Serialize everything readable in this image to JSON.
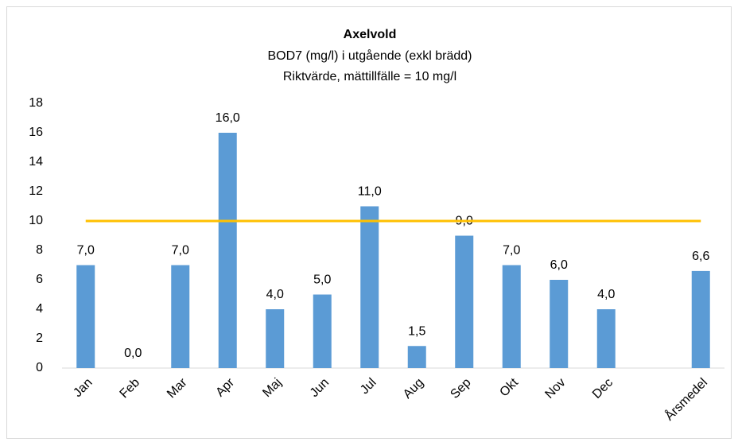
{
  "chart_data": {
    "type": "bar",
    "title": "Axelvold",
    "subtitle": [
      "BOD7 (mg/l) i utgående (exkl brädd)",
      "Riktvärde, mättillfälle = 10 mg/l"
    ],
    "categories": [
      "Jan",
      "Feb",
      "Mar",
      "Apr",
      "Maj",
      "Jun",
      "Jul",
      "Aug",
      "Sep",
      "Okt",
      "Nov",
      "Dec",
      null,
      "Årsmedel"
    ],
    "values": [
      7,
      0,
      7,
      16,
      4,
      5,
      11,
      1.5,
      9,
      7,
      6,
      4,
      null,
      6.6
    ],
    "value_labels": [
      "7,0",
      "0,0",
      "7,0",
      "16,0",
      "4,0",
      "5,0",
      "11,0",
      "1,5",
      "9,0",
      "7,0",
      "6,0",
      "4,0",
      null,
      "6,6"
    ],
    "color": "#5b9bd5",
    "reference_line": {
      "value": 10,
      "color": "#ffc000"
    },
    "ylim": [
      0,
      18
    ],
    "yticks": [
      0,
      2,
      4,
      6,
      8,
      10,
      12,
      14,
      16,
      18
    ],
    "grid": false
  }
}
